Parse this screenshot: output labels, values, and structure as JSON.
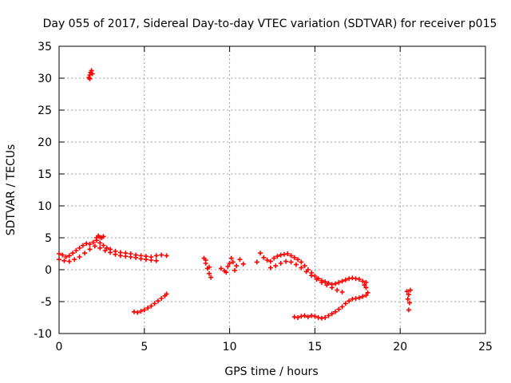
{
  "chart_data": {
    "type": "scatter",
    "title": "Day 055 of 2017, Sidereal Day-to-day VTEC variation (SDTVAR) for receiver p015",
    "xlabel": "GPS time / hours",
    "ylabel": "SDTVAR / TECUs",
    "xlim": [
      0,
      25
    ],
    "ylim": [
      -10,
      35
    ],
    "xticks": [
      0,
      5,
      10,
      15,
      20,
      25
    ],
    "yticks": [
      -10,
      -5,
      0,
      5,
      10,
      15,
      20,
      25,
      30,
      35
    ],
    "grid": true,
    "marker": "+",
    "color": "#ff0000",
    "series": [
      {
        "name": "upper-track",
        "points": [
          [
            0.0,
            2.5
          ],
          [
            0.2,
            2.3
          ],
          [
            0.4,
            2.0
          ],
          [
            0.6,
            2.2
          ],
          [
            0.8,
            2.6
          ],
          [
            1.0,
            3.0
          ],
          [
            1.2,
            3.4
          ],
          [
            1.4,
            3.8
          ],
          [
            1.6,
            4.1
          ],
          [
            1.8,
            4.0
          ],
          [
            2.0,
            4.3
          ],
          [
            2.2,
            4.6
          ],
          [
            2.4,
            4.2
          ],
          [
            2.6,
            3.8
          ],
          [
            2.8,
            3.4
          ],
          [
            3.0,
            3.2
          ],
          [
            3.3,
            2.9
          ],
          [
            3.6,
            2.7
          ],
          [
            3.9,
            2.6
          ],
          [
            4.2,
            2.5
          ],
          [
            4.5,
            2.3
          ],
          [
            4.8,
            2.2
          ],
          [
            5.1,
            2.1
          ],
          [
            5.4,
            2.0
          ],
          [
            5.7,
            2.2
          ],
          [
            6.0,
            2.3
          ],
          [
            6.3,
            2.2
          ]
        ]
      },
      {
        "name": "upper-track-lower-band",
        "points": [
          [
            0.0,
            1.6
          ],
          [
            0.3,
            1.4
          ],
          [
            0.6,
            1.3
          ],
          [
            0.9,
            1.6
          ],
          [
            1.2,
            2.0
          ],
          [
            1.5,
            2.6
          ],
          [
            1.8,
            3.2
          ],
          [
            2.1,
            3.7
          ],
          [
            2.4,
            3.4
          ],
          [
            2.7,
            3.0
          ],
          [
            3.0,
            2.7
          ],
          [
            3.3,
            2.4
          ],
          [
            3.6,
            2.2
          ],
          [
            3.9,
            2.1
          ],
          [
            4.2,
            2.0
          ],
          [
            4.5,
            1.9
          ],
          [
            4.8,
            1.7
          ],
          [
            5.1,
            1.6
          ],
          [
            5.4,
            1.5
          ],
          [
            5.7,
            1.4
          ]
        ]
      },
      {
        "name": "early-spike",
        "points": [
          [
            2.2,
            5.0
          ],
          [
            2.3,
            5.3
          ],
          [
            2.4,
            5.1
          ],
          [
            2.5,
            5.0
          ],
          [
            2.6,
            5.2
          ]
        ]
      },
      {
        "name": "high-outliers",
        "points": [
          [
            1.75,
            30.1
          ],
          [
            1.8,
            30.5
          ],
          [
            1.85,
            30.9
          ],
          [
            1.9,
            31.2
          ],
          [
            1.95,
            30.7
          ],
          [
            1.8,
            29.9
          ]
        ]
      },
      {
        "name": "low-diagonal",
        "points": [
          [
            4.4,
            -6.6
          ],
          [
            4.6,
            -6.7
          ],
          [
            4.8,
            -6.5
          ],
          [
            5.0,
            -6.3
          ],
          [
            5.2,
            -6.0
          ],
          [
            5.4,
            -5.7
          ],
          [
            5.6,
            -5.3
          ],
          [
            5.8,
            -4.9
          ],
          [
            6.0,
            -4.5
          ],
          [
            6.2,
            -4.1
          ],
          [
            6.3,
            -3.8
          ]
        ]
      },
      {
        "name": "mid-cluster-a",
        "points": [
          [
            8.5,
            1.8
          ],
          [
            8.6,
            1.0
          ],
          [
            8.7,
            0.2
          ],
          [
            8.8,
            -0.6
          ],
          [
            8.9,
            -1.2
          ],
          [
            8.6,
            1.5
          ],
          [
            8.8,
            0.4
          ]
        ]
      },
      {
        "name": "mid-cluster-b",
        "points": [
          [
            9.5,
            0.2
          ],
          [
            9.7,
            -0.2
          ],
          [
            9.9,
            0.5
          ],
          [
            10.0,
            1.0
          ],
          [
            10.1,
            1.8
          ],
          [
            10.2,
            1.2
          ],
          [
            10.4,
            0.6
          ],
          [
            10.6,
            1.6
          ],
          [
            10.8,
            0.9
          ],
          [
            9.8,
            -0.4
          ],
          [
            10.3,
            -0.1
          ]
        ]
      },
      {
        "name": "main-track-afternoon",
        "points": [
          [
            11.6,
            1.2
          ],
          [
            11.8,
            2.6
          ],
          [
            12.0,
            1.9
          ],
          [
            12.2,
            1.5
          ],
          [
            12.4,
            1.3
          ],
          [
            12.6,
            1.8
          ],
          [
            12.8,
            2.1
          ],
          [
            13.0,
            2.3
          ],
          [
            13.2,
            2.4
          ],
          [
            13.4,
            2.5
          ],
          [
            13.6,
            2.2
          ],
          [
            13.8,
            1.9
          ],
          [
            14.0,
            1.6
          ],
          [
            14.2,
            1.2
          ],
          [
            14.4,
            0.6
          ],
          [
            14.6,
            0.0
          ],
          [
            14.8,
            -0.5
          ],
          [
            15.0,
            -1.0
          ],
          [
            15.2,
            -1.4
          ],
          [
            15.4,
            -1.7
          ],
          [
            15.6,
            -1.9
          ],
          [
            15.8,
            -2.1
          ],
          [
            16.0,
            -2.3
          ],
          [
            16.2,
            -2.2
          ],
          [
            16.4,
            -2.0
          ],
          [
            16.6,
            -1.8
          ],
          [
            16.8,
            -1.6
          ],
          [
            17.0,
            -1.4
          ],
          [
            17.2,
            -1.3
          ],
          [
            17.4,
            -1.4
          ],
          [
            17.6,
            -1.5
          ],
          [
            17.8,
            -1.8
          ],
          [
            18.0,
            -2.0
          ]
        ]
      },
      {
        "name": "main-track-lower-band",
        "points": [
          [
            12.4,
            0.3
          ],
          [
            12.7,
            0.6
          ],
          [
            13.0,
            1.0
          ],
          [
            13.3,
            1.3
          ],
          [
            13.6,
            1.2
          ],
          [
            13.9,
            0.8
          ],
          [
            14.2,
            0.3
          ],
          [
            14.5,
            -0.3
          ],
          [
            14.8,
            -0.9
          ],
          [
            15.1,
            -1.5
          ],
          [
            15.4,
            -2.0
          ],
          [
            15.7,
            -2.4
          ],
          [
            16.0,
            -2.8
          ],
          [
            16.3,
            -3.2
          ],
          [
            16.6,
            -3.5
          ]
        ]
      },
      {
        "name": "low-arc",
        "points": [
          [
            13.8,
            -7.4
          ],
          [
            14.0,
            -7.5
          ],
          [
            14.2,
            -7.3
          ],
          [
            14.4,
            -7.2
          ],
          [
            14.6,
            -7.4
          ],
          [
            14.8,
            -7.2
          ],
          [
            15.0,
            -7.3
          ],
          [
            15.2,
            -7.5
          ],
          [
            15.4,
            -7.6
          ],
          [
            15.6,
            -7.5
          ],
          [
            15.8,
            -7.2
          ],
          [
            16.0,
            -6.9
          ],
          [
            16.2,
            -6.6
          ],
          [
            16.4,
            -6.2
          ],
          [
            16.6,
            -5.8
          ],
          [
            16.8,
            -5.3
          ],
          [
            17.0,
            -4.9
          ],
          [
            17.2,
            -4.6
          ],
          [
            17.4,
            -4.5
          ],
          [
            17.6,
            -4.4
          ],
          [
            17.8,
            -4.2
          ],
          [
            18.0,
            -4.0
          ],
          [
            18.1,
            -3.6
          ],
          [
            18.0,
            -2.8
          ],
          [
            17.9,
            -2.4
          ]
        ]
      },
      {
        "name": "late-cluster",
        "points": [
          [
            20.4,
            -3.4
          ],
          [
            20.5,
            -3.9
          ],
          [
            20.6,
            -3.2
          ],
          [
            20.45,
            -4.6
          ],
          [
            20.55,
            -5.2
          ],
          [
            20.5,
            -6.3
          ]
        ]
      }
    ]
  }
}
